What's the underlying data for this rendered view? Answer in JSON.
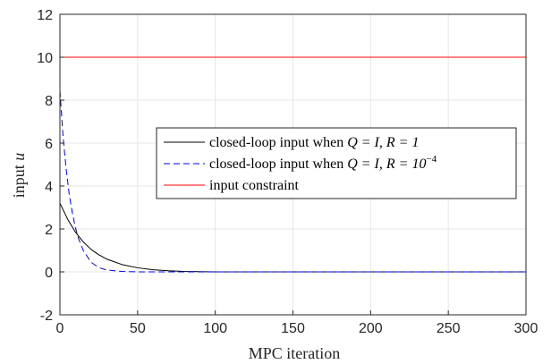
{
  "chart_data": {
    "type": "line",
    "xlabel": "MPC iteration",
    "ylabel_text": "input",
    "ylabel_var": "u",
    "xlim": [
      0,
      300
    ],
    "ylim": [
      -2,
      12
    ],
    "xticks": [
      0,
      50,
      100,
      150,
      200,
      250,
      300
    ],
    "yticks": [
      -2,
      0,
      2,
      4,
      6,
      8,
      10,
      12
    ],
    "xtick_labels": [
      "0",
      "50",
      "100",
      "150",
      "200",
      "250",
      "300"
    ],
    "ytick_labels": [
      "-2",
      "0",
      "2",
      "4",
      "6",
      "8",
      "10",
      "12"
    ],
    "grid": true,
    "legend_position": "center-right",
    "series": [
      {
        "name_prefix": "closed-loop input when ",
        "name_math": "Q = I, R = 1",
        "color": "#000000",
        "dash": "solid",
        "x": [
          0,
          5,
          10,
          15,
          20,
          25,
          30,
          40,
          50,
          60,
          70,
          80,
          100,
          150,
          200,
          250,
          300
        ],
        "y": [
          3.2,
          2.45,
          1.85,
          1.4,
          1.05,
          0.8,
          0.6,
          0.34,
          0.19,
          0.1,
          0.05,
          0.02,
          0.0,
          0.0,
          0.0,
          0.0,
          0.0
        ]
      },
      {
        "name_prefix": "closed-loop input when ",
        "name_math": "Q = I, R = 10",
        "name_sup": "−4",
        "color": "#0000ff",
        "dash": "dashed",
        "x": [
          0,
          2,
          4,
          6,
          8,
          10,
          12,
          15,
          20,
          25,
          30,
          40,
          50,
          100,
          150,
          200,
          250,
          300
        ],
        "y": [
          8.45,
          6.3,
          4.8,
          3.6,
          2.75,
          2.05,
          1.55,
          1.0,
          0.45,
          0.2,
          0.09,
          0.02,
          0.0,
          0.0,
          0.0,
          0.0,
          0.0,
          0.0
        ]
      },
      {
        "name_prefix": "input constraint",
        "color": "#ff0000",
        "dash": "solid",
        "x": [
          0,
          300
        ],
        "y": [
          10,
          10
        ]
      }
    ]
  }
}
